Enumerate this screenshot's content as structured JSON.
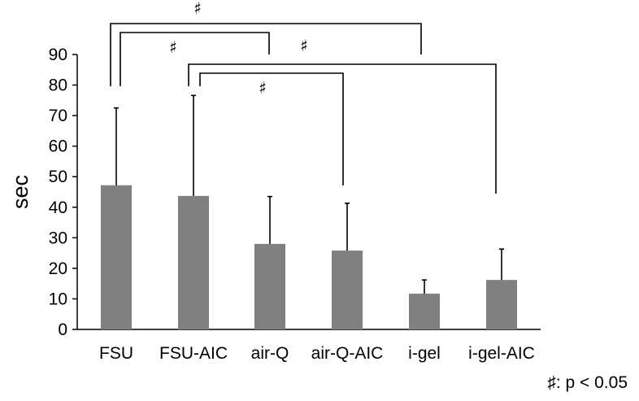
{
  "chart_data": {
    "type": "bar",
    "title": "",
    "xlabel": "",
    "ylabel": "sec",
    "ylim": [
      0,
      90
    ],
    "yticks": [
      0,
      10,
      20,
      30,
      40,
      50,
      60,
      70,
      80,
      90
    ],
    "grid": false,
    "legend": null,
    "bar_color": "#808080",
    "categories": [
      "FSU",
      "FSU-AIC",
      "air-Q",
      "air-Q-AIC",
      "i-gel",
      "i-gel-AIC"
    ],
    "values": [
      47.2,
      43.7,
      28.0,
      25.8,
      11.7,
      16.2
    ],
    "error_upper": [
      72.5,
      76.6,
      43.5,
      41.3,
      16.2,
      26.3
    ],
    "error_sd": [
      25.3,
      32.9,
      15.5,
      15.5,
      4.5,
      10.1
    ],
    "significance_brackets": [
      {
        "from": "FSU",
        "to": "i-gel",
        "label": "♯"
      },
      {
        "from": "FSU",
        "to": "air-Q",
        "label": "♯"
      },
      {
        "from": "FSU-AIC",
        "to": "i-gel-AIC",
        "label": "♯"
      },
      {
        "from": "FSU-AIC",
        "to": "air-Q-AIC",
        "label": "♯"
      }
    ],
    "annotations": [
      "♯: p < 0.05"
    ]
  },
  "footnote": "♯: p < 0.05"
}
